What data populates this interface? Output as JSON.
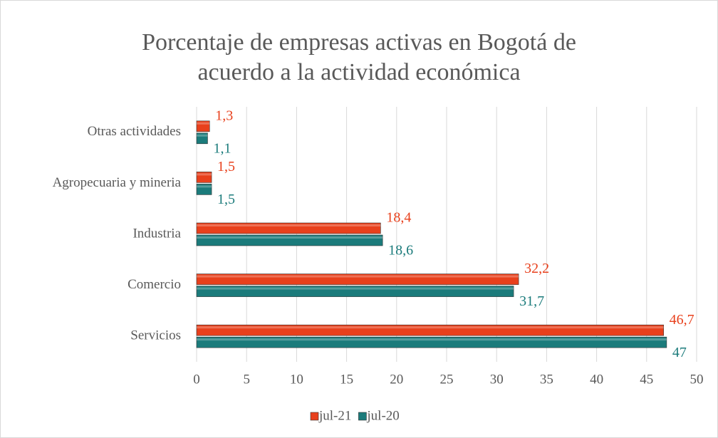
{
  "chart_data": {
    "type": "hbar",
    "title": [
      "Porcentaje de empresas activas en Bogotá de",
      "acuerdo a la actividad económica"
    ],
    "categories": [
      "Otras actividades",
      "Agropecuaria y mineria",
      "Industria",
      "Comercio",
      "Servicios"
    ],
    "series": [
      {
        "name": "jul-21",
        "color": "#e8401c",
        "values": [
          1.3,
          1.5,
          18.4,
          32.2,
          46.7
        ],
        "value_labels": [
          "1,3",
          "1,5",
          "18,4",
          "32,2",
          "46,7"
        ]
      },
      {
        "name": "jul-20",
        "color": "#1b7b7b",
        "values": [
          1.1,
          1.5,
          18.6,
          31.7,
          47
        ],
        "value_labels": [
          "1,1",
          "1,5",
          "18,6",
          "31,7",
          "47"
        ]
      }
    ],
    "xlim": [
      0,
      50
    ],
    "xticks": [
      0,
      5,
      10,
      15,
      20,
      25,
      30,
      35,
      40,
      45,
      50
    ],
    "grid": true,
    "legend": "bottom"
  }
}
